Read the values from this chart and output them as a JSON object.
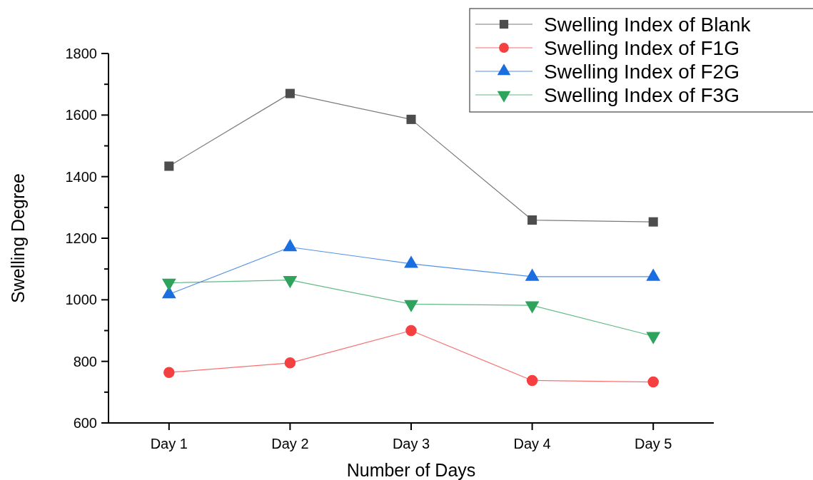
{
  "chart_data": {
    "type": "line",
    "xlabel": "Number of Days",
    "ylabel": "Swelling Degree",
    "categories": [
      "Day 1",
      "Day 2",
      "Day 3",
      "Day 4",
      "Day 5"
    ],
    "series": [
      {
        "name": "Swelling Index of Blank",
        "color": "#4d4d4d",
        "marker": "square",
        "values": [
          1434,
          1670,
          1586,
          1259,
          1253
        ]
      },
      {
        "name": "Swelling Index of F1G",
        "color": "#f44040",
        "marker": "circle",
        "values": [
          764,
          795,
          900,
          738,
          733
        ]
      },
      {
        "name": "Swelling Index of F2G",
        "color": "#1a6ee0",
        "marker": "triangle",
        "values": [
          1018,
          1171,
          1117,
          1075,
          1075
        ]
      },
      {
        "name": "Swelling Index of F3G",
        "color": "#2ea35c",
        "marker": "triangle-down",
        "values": [
          1055,
          1064,
          986,
          982,
          882
        ]
      }
    ],
    "ylim": [
      600,
      1800
    ],
    "yticks": [
      600,
      {
        "value": 700,
        "label": null
      },
      800,
      {
        "value": 900,
        "label": null
      },
      1000,
      {
        "value": 1100,
        "label": null
      },
      1200,
      {
        "value": 1300,
        "label": null
      },
      1400,
      {
        "value": 1500,
        "label": null
      },
      1600,
      {
        "value": 1700,
        "label": null
      },
      1800
    ],
    "grid": false,
    "legend": "top right",
    "line_style": "solid"
  }
}
